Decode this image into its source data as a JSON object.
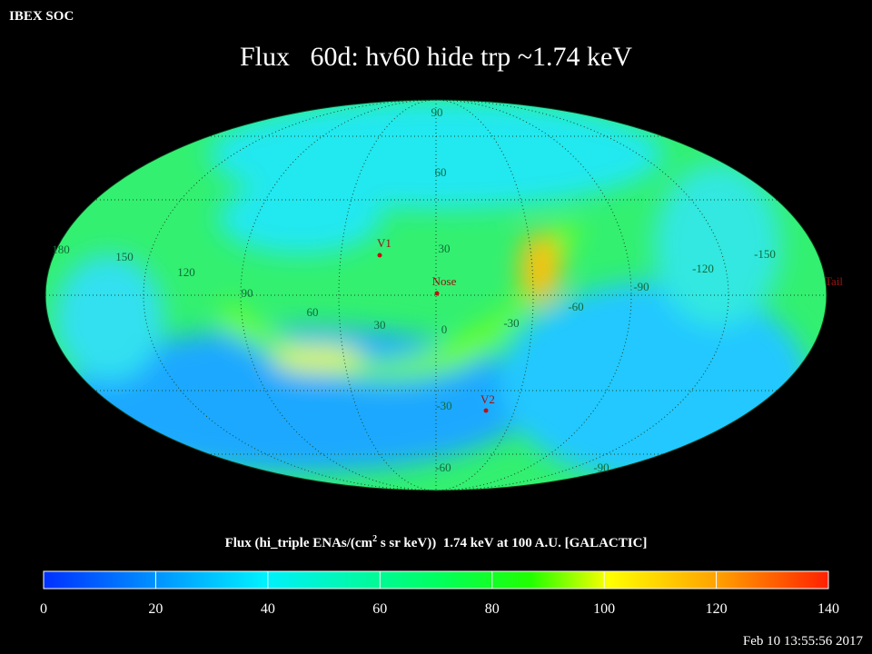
{
  "header": {
    "org": "IBEX SOC",
    "title": "Flux   60d: hv60 hide trp ~1.74 keV"
  },
  "map": {
    "longitude_labels": [
      "180",
      "150",
      "120",
      "90",
      "60",
      "30",
      "0",
      "-30",
      "-60",
      "-90",
      "-120",
      "-150"
    ],
    "latitude_labels": [
      "90",
      "60",
      "30",
      "-30",
      "-60",
      "-90"
    ],
    "markers": [
      {
        "label": "V1"
      },
      {
        "label": "Nose"
      },
      {
        "label": "V2"
      },
      {
        "label": "Tail"
      }
    ]
  },
  "colorbar": {
    "title": "Flux (hi_triple ENAs/(cm",
    "title_sup": "2",
    "title_end": " s sr keV))  1.74 keV at 100 A.U. [GALACTIC]",
    "range": [
      0,
      140
    ],
    "ticks": [
      0,
      20,
      40,
      60,
      80,
      100,
      120,
      140
    ]
  },
  "footer": {
    "timestamp": "Feb 10 13:55:56 2017"
  }
}
